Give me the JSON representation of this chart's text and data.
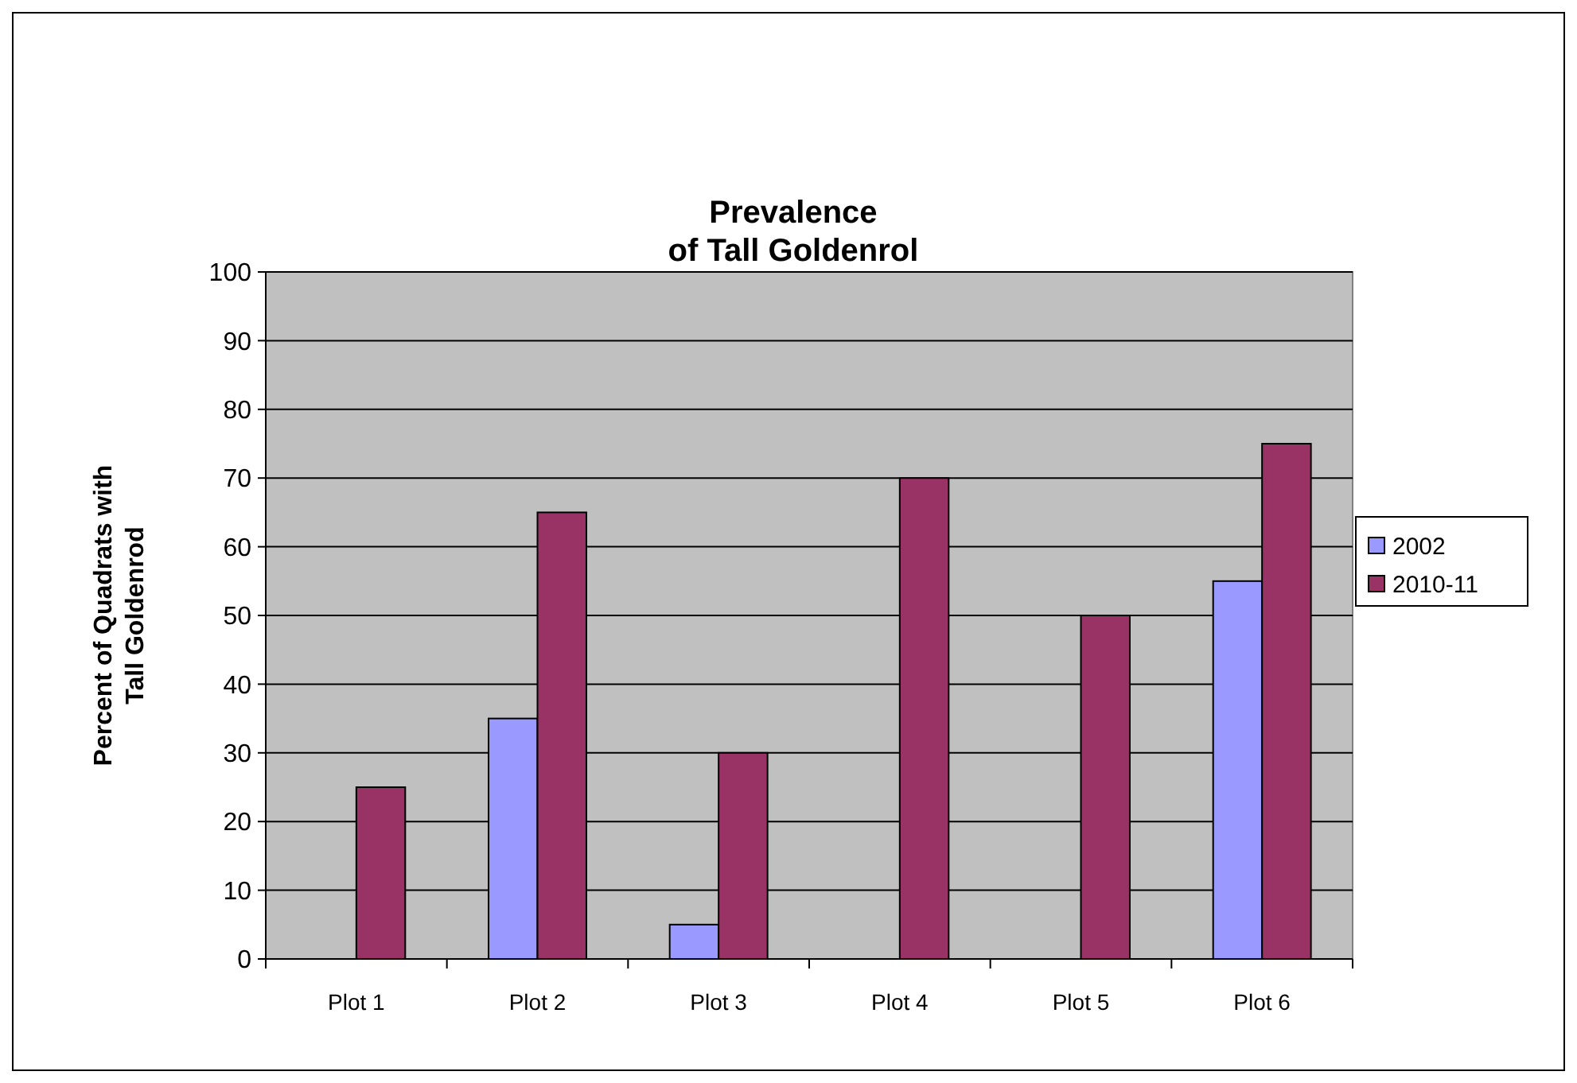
{
  "chart_data": {
    "type": "bar",
    "title": "Prevalence\nof Tall Goldenrol",
    "ylabel": "Percent of Quadrats with\nTall Goldenrod",
    "categories": [
      "Plot 1",
      "Plot 2",
      "Plot 3",
      "Plot 4",
      "Plot 5",
      "Plot 6"
    ],
    "series": [
      {
        "name": "2002",
        "color": "#9999ff",
        "values": [
          0,
          35,
          5,
          0,
          0,
          55
        ]
      },
      {
        "name": "2010-11",
        "color": "#993366",
        "values": [
          25,
          65,
          30,
          70,
          50,
          75
        ]
      }
    ],
    "ylim": [
      0,
      100
    ],
    "yticks": [
      0,
      10,
      20,
      30,
      40,
      50,
      60,
      70,
      80,
      90,
      100
    ],
    "grid": "y",
    "legend": "right"
  }
}
